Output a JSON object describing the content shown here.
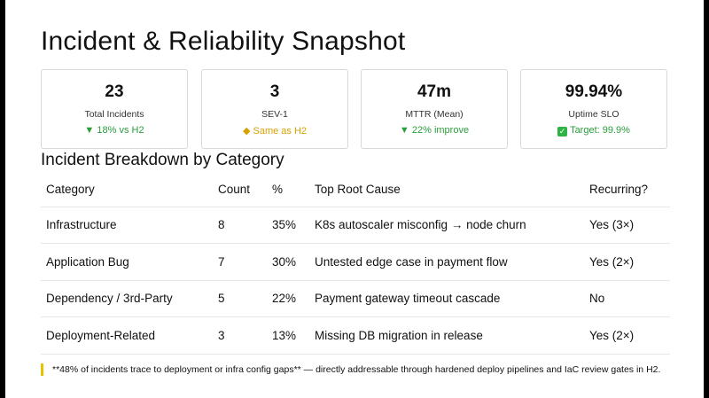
{
  "title": "Incident & Reliability Snapshot",
  "kpis": [
    {
      "value": "23",
      "label": "Total Incidents",
      "delta": "▼ 18% vs H2",
      "status": "down",
      "color": "#2a9d3c"
    },
    {
      "value": "3",
      "label": "SEV-1",
      "delta": "◆ Same as H2",
      "status": "same",
      "color": "#d8a100"
    },
    {
      "value": "47m",
      "label": "MTTR (Mean)",
      "delta": "▼ 22% improve",
      "status": "down",
      "color": "#2a9d3c"
    },
    {
      "value": "99.94%",
      "label": "Uptime SLO",
      "delta": "Target: 99.9%",
      "status": "good",
      "icon": "check-icon",
      "color": "#2a9d3c"
    }
  ],
  "breakdown": {
    "title": "Incident Breakdown by Category",
    "headers": [
      "Category",
      "Count",
      "%",
      "Top Root Cause",
      "Recurring?"
    ],
    "rows": [
      [
        "Infrastructure",
        "8",
        "35%",
        "K8s autoscaler misconfig → node churn",
        "Yes (3×)"
      ],
      [
        "Application Bug",
        "7",
        "30%",
        "Untested edge case in payment flow",
        "Yes (2×)"
      ],
      [
        "Dependency / 3rd-Party",
        "5",
        "22%",
        "Payment gateway timeout cascade",
        "No"
      ],
      [
        "Deployment-Related",
        "3",
        "13%",
        "Missing DB migration in release",
        "Yes (2×)"
      ]
    ]
  },
  "note": "**48% of incidents trace to deployment or infra config gaps** — directly addressable through hardened deploy pipelines and IaC review gates in H2.",
  "colors": {
    "accent_bar": "#e8c200",
    "border": "#d9d9d9"
  }
}
